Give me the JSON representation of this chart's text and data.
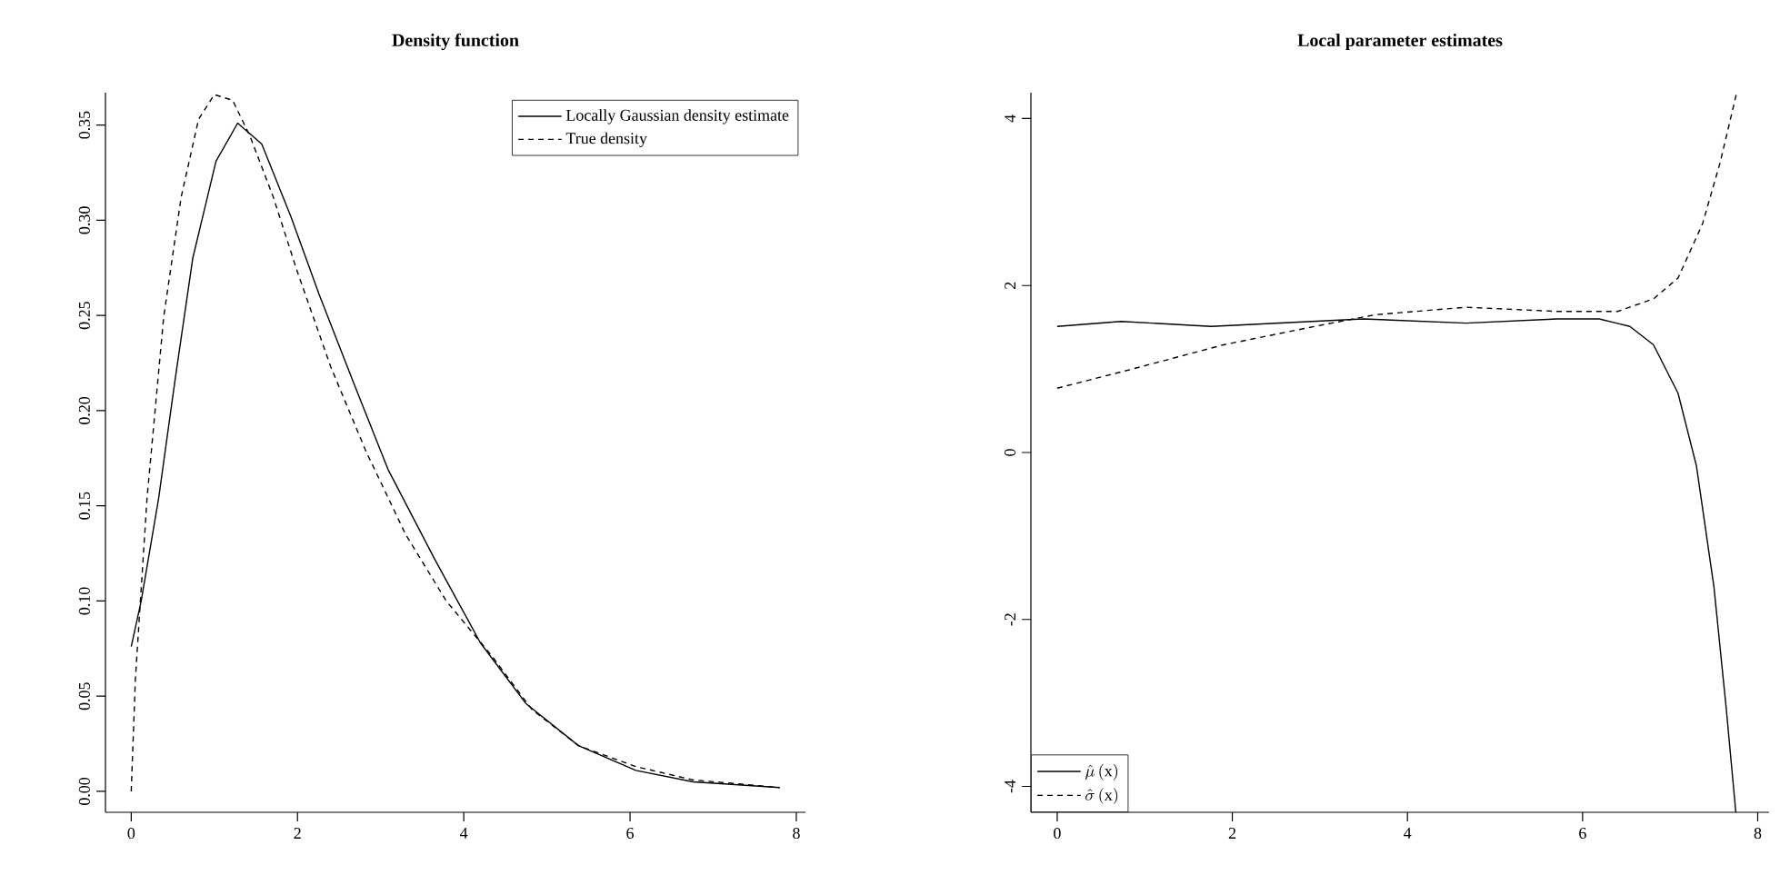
{
  "chart_data": [
    {
      "type": "line",
      "title": "Density function",
      "xlim": [
        -0.31,
        8.11
      ],
      "ylim": [
        -0.011,
        0.367
      ],
      "xticks": [
        0,
        2,
        4,
        6,
        8
      ],
      "yticks": [
        {
          "value": 0,
          "label": "0.00"
        },
        {
          "value": 0.05,
          "label": "0.05"
        },
        {
          "value": 0.1,
          "label": "0.10"
        },
        {
          "value": 0.15,
          "label": "0.15"
        },
        {
          "value": 0.2,
          "label": "0.20"
        },
        {
          "value": 0.25,
          "label": "0.25"
        },
        {
          "value": 0.3,
          "label": "0.30"
        },
        {
          "value": 0.35,
          "label": "0.35"
        }
      ],
      "legend": "top right",
      "grid": false,
      "series": [
        {
          "name": "Locally Gaussian density estimate",
          "color": "#000000",
          "line_style": "solid",
          "x": [
            0,
            0.12,
            0.33,
            0.53,
            0.74,
            1.02,
            1.28,
            1.57,
            1.92,
            2.26,
            2.68,
            3.09,
            3.65,
            4.2,
            4.75,
            5.38,
            6.07,
            6.76,
            7.8
          ],
          "values": [
            0.076,
            0.1,
            0.154,
            0.217,
            0.28,
            0.331,
            0.351,
            0.34,
            0.302,
            0.261,
            0.214,
            0.169,
            0.122,
            0.078,
            0.046,
            0.024,
            0.011,
            0.005,
            0.002
          ]
        },
        {
          "name": "True density",
          "color": "#000000",
          "line_style": "dashed",
          "x": [
            0,
            0.05,
            0.19,
            0.39,
            0.6,
            0.81,
            1.0,
            1.22,
            1.43,
            1.71,
            1.99,
            2.4,
            2.82,
            3.3,
            3.79,
            4.34,
            4.82,
            5.38,
            6.07,
            6.76,
            7.8
          ],
          "values": [
            0,
            0.059,
            0.154,
            0.249,
            0.312,
            0.353,
            0.366,
            0.363,
            0.344,
            0.312,
            0.274,
            0.223,
            0.179,
            0.135,
            0.1,
            0.071,
            0.043,
            0.024,
            0.013,
            0.006,
            0.002
          ]
        }
      ]
    },
    {
      "type": "line",
      "title": "Local parameter estimates",
      "xlim": [
        -0.3,
        8.13
      ],
      "ylim": [
        -4.31,
        4.31
      ],
      "xticks": [
        0,
        2,
        4,
        6,
        8
      ],
      "yticks": [
        -4,
        -2,
        0,
        2,
        4
      ],
      "legend": "bottom left",
      "grid": false,
      "series": [
        {
          "name": "\\hat{\\mu}\\left(\\mathrm{x}\\right)",
          "color": "#000000",
          "line_style": "solid",
          "x": [
            0,
            0.73,
            1.76,
            3.49,
            4.67,
            5.71,
            6.19,
            6.54,
            6.81,
            7.09,
            7.3,
            7.5,
            7.64,
            7.75
          ],
          "values": [
            1.51,
            1.57,
            1.51,
            1.6,
            1.55,
            1.6,
            1.6,
            1.51,
            1.29,
            0.71,
            -0.16,
            -1.61,
            -3.06,
            -4.31
          ]
        },
        {
          "name": "\\hat{\\sigma}\\left(\\mathrm{x}\\right)",
          "color": "#000000",
          "line_style": "dashed",
          "x": [
            0,
            0.86,
            1.9,
            2.94,
            3.63,
            4.67,
            5.71,
            6.4,
            6.81,
            7.09,
            7.37,
            7.57,
            7.76
          ],
          "values": [
            0.77,
            1.0,
            1.29,
            1.51,
            1.65,
            1.74,
            1.69,
            1.69,
            1.84,
            2.09,
            2.74,
            3.47,
            4.31
          ]
        }
      ]
    }
  ]
}
